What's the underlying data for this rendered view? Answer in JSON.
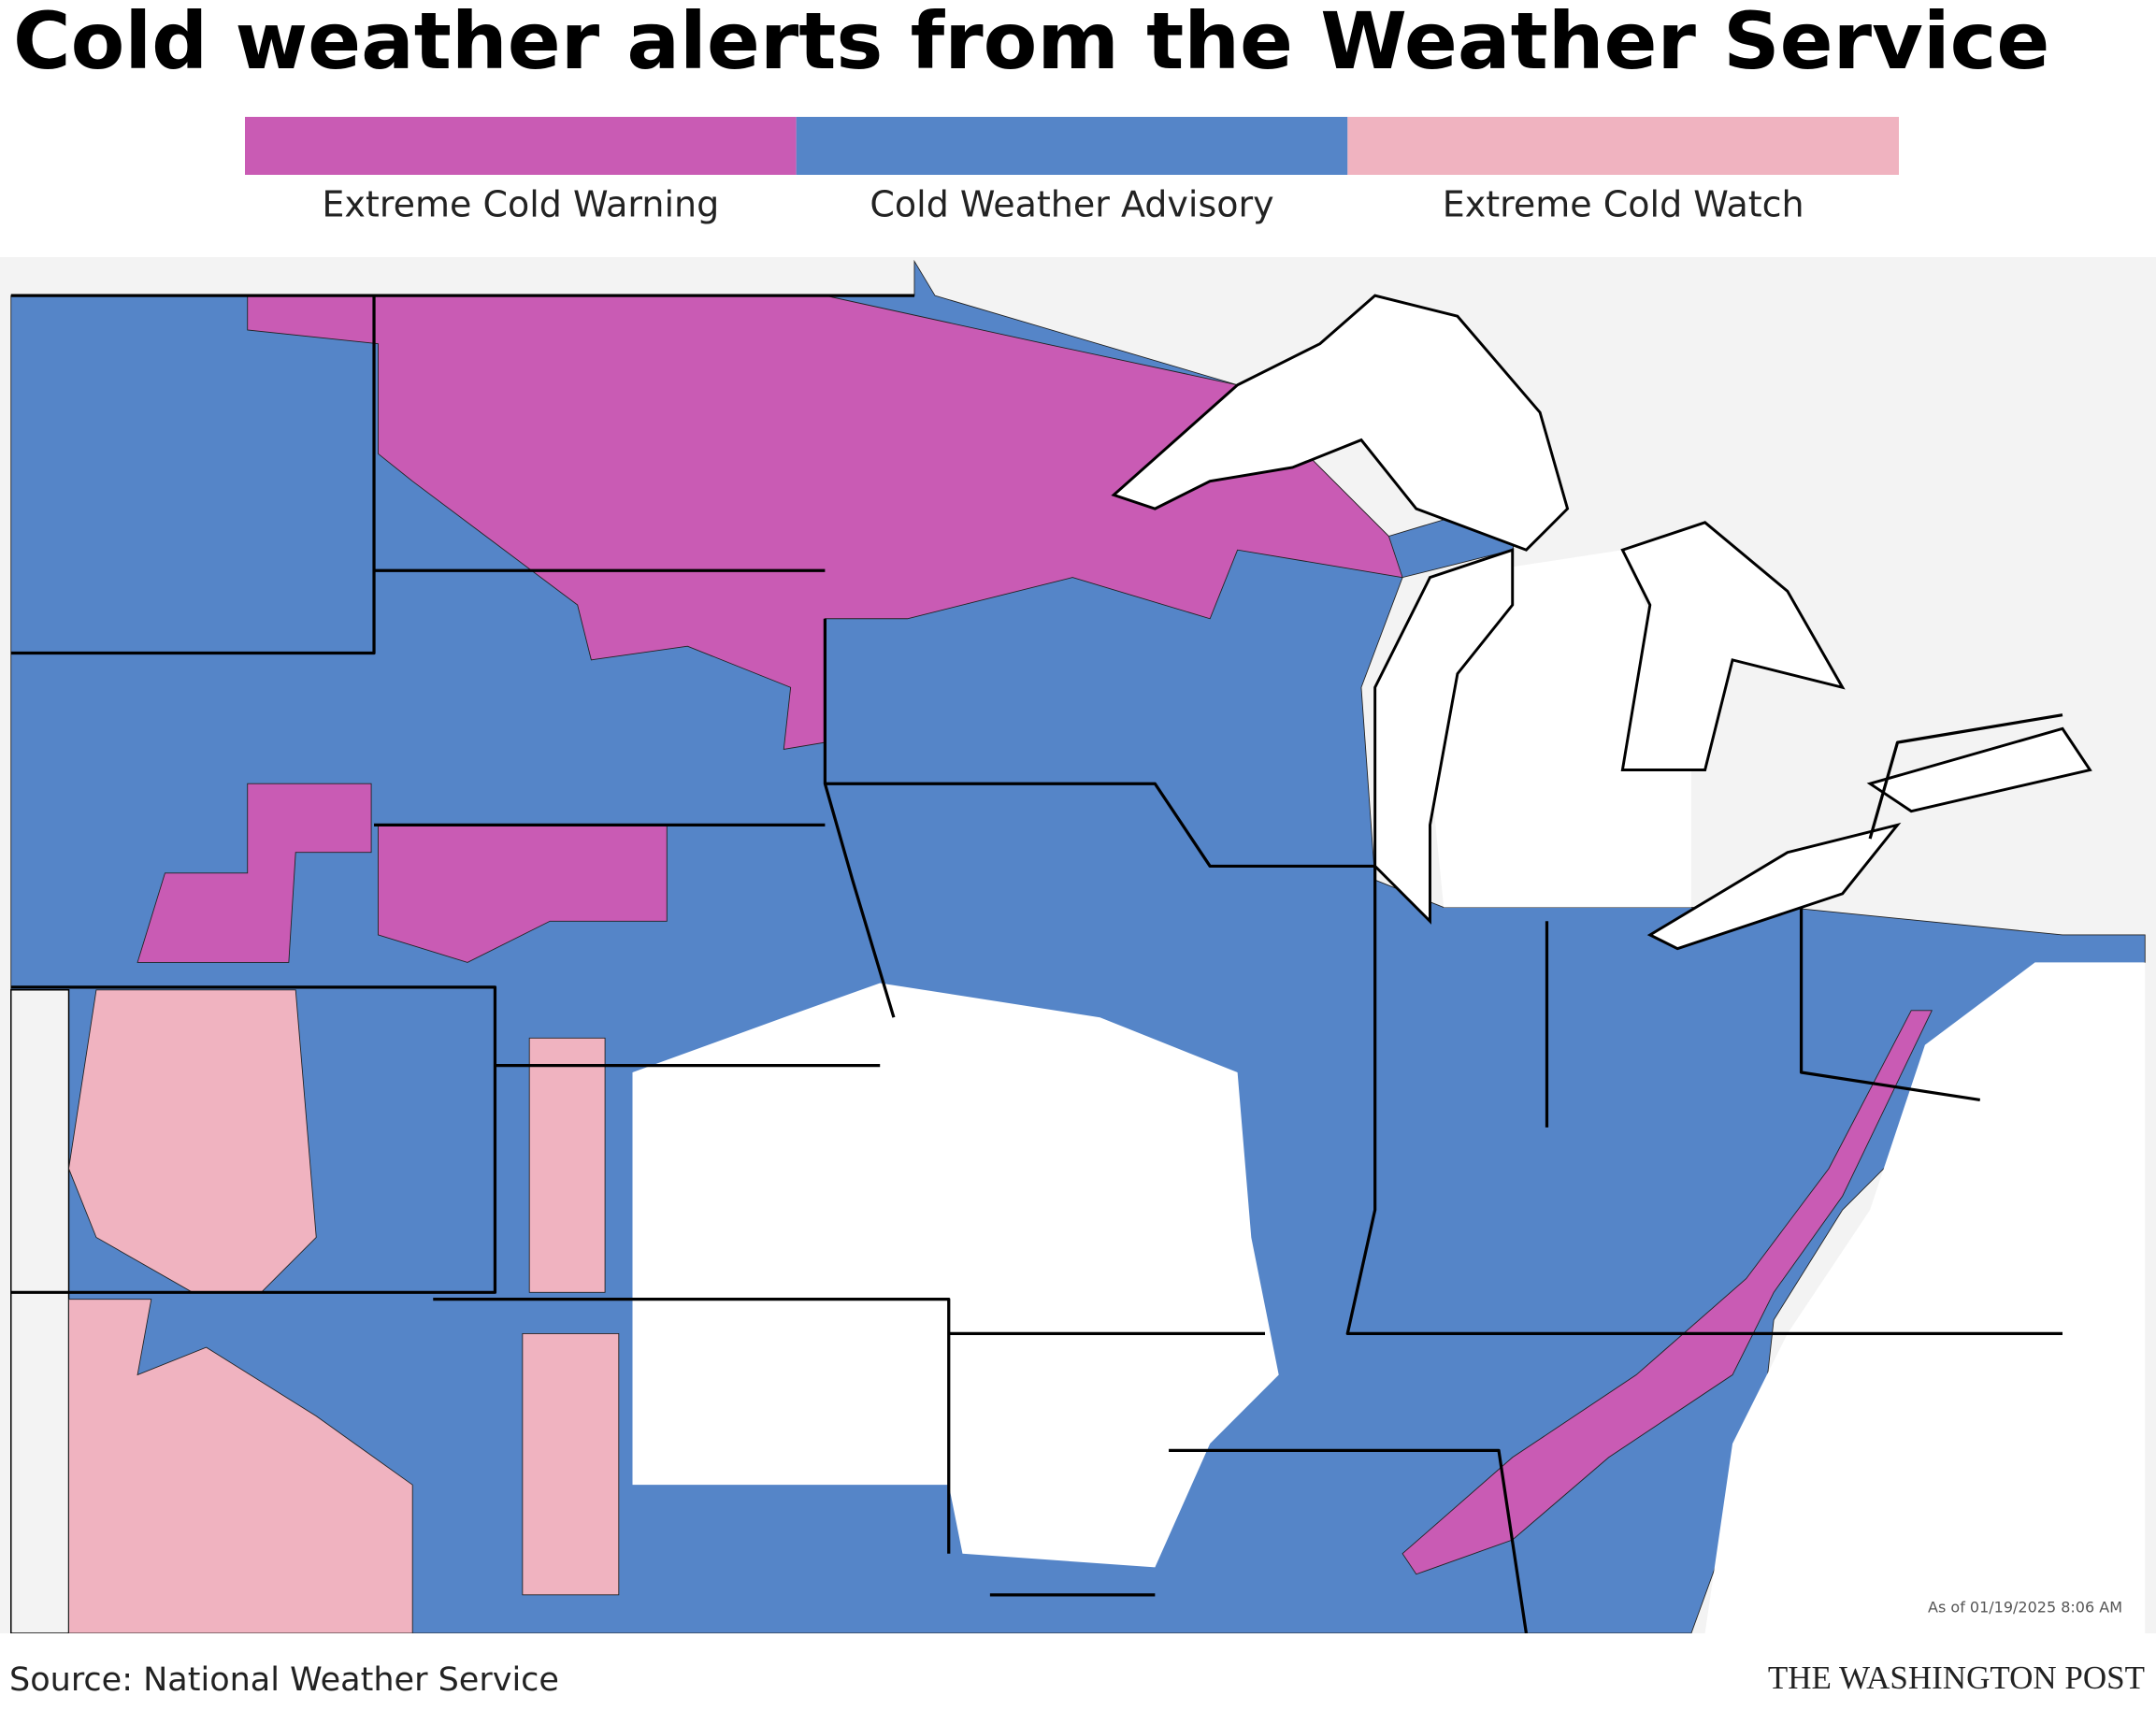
{
  "title": "Cold weather alerts from the Weather Service",
  "legend": [
    {
      "label": "Extreme Cold Warning",
      "color": "#c95bb4"
    },
    {
      "label": "Cold Weather Advisory",
      "color": "#5585c8"
    },
    {
      "label": "Extreme Cold Watch",
      "color": "#f0b3c0"
    }
  ],
  "timestamp": "As of 01/19/2025 8:06 AM",
  "source": "Source: National Weather Service",
  "credit": "THE WASHINGTON POST"
}
